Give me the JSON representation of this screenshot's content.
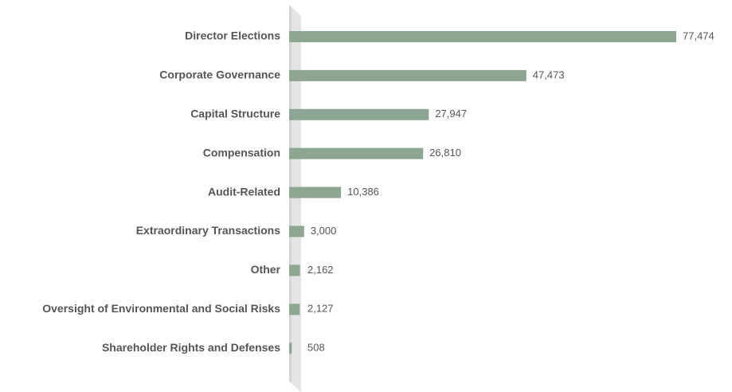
{
  "chart_data": {
    "type": "bar",
    "orientation": "horizontal",
    "categories": [
      "Director Elections",
      "Corporate Governance",
      "Capital Structure",
      "Compensation",
      "Audit-Related",
      "Extraordinary Transactions",
      "Other",
      "Oversight of Environmental and Social Risks",
      "Shareholder Rights and Defenses"
    ],
    "values": [
      77474,
      47473,
      27947,
      26810,
      10386,
      3000,
      2162,
      2127,
      508
    ],
    "value_labels": [
      "77,474",
      "47,473",
      "27,947",
      "26,810",
      "10,386",
      "3,000",
      "2,162",
      "2,127",
      "508"
    ],
    "color": "#8ea592"
  }
}
